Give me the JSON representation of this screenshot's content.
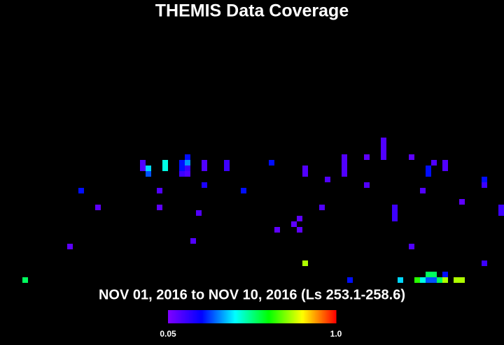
{
  "chart_data": {
    "type": "heatmap",
    "title": "THEMIS Data Coverage",
    "subtitle": "NOV 01, 2016 to NOV 10, 2016 (Ls 253.1-258.6)",
    "x": [
      4,
      12,
      14,
      17,
      25,
      25,
      26,
      26,
      28,
      28,
      29,
      29,
      32,
      32,
      33,
      33,
      33,
      32,
      33,
      34,
      35,
      36,
      36,
      36,
      40,
      40,
      43,
      48,
      49,
      52,
      53,
      53,
      54,
      54,
      54,
      57,
      58,
      61,
      61,
      61,
      61,
      62,
      65,
      65,
      68,
      68,
      68,
      68,
      70,
      70,
      70,
      71,
      73,
      73,
      74,
      75,
      75,
      76,
      76,
      76,
      77,
      76,
      77,
      77,
      78,
      79,
      79,
      79,
      79,
      81,
      82,
      82,
      86,
      86,
      86,
      89,
      89
    ],
    "y": [
      49,
      43,
      33,
      36,
      28,
      29,
      29,
      30,
      33,
      36,
      28,
      29,
      28,
      29,
      27,
      28,
      29,
      30,
      30,
      42,
      37,
      28,
      29,
      32,
      28,
      29,
      33,
      28,
      40,
      39,
      38,
      40,
      29,
      30,
      46,
      36,
      31,
      27,
      28,
      29,
      30,
      49,
      27,
      32,
      24,
      25,
      26,
      27,
      36,
      37,
      38,
      49,
      27,
      43,
      49,
      33,
      49,
      29,
      30,
      48,
      48,
      49,
      49,
      28,
      49,
      28,
      29,
      48,
      49,
      49,
      49,
      35,
      31,
      32,
      46,
      36,
      37
    ],
    "values": [
      0.55,
      0.1,
      0.25,
      0.1,
      0.12,
      0.12,
      0.4,
      0.3,
      0.12,
      0.1,
      0.45,
      0.45,
      0.25,
      0.25,
      0.25,
      0.35,
      0.15,
      0.15,
      0.12,
      0.12,
      0.12,
      0.12,
      0.12,
      0.2,
      0.15,
      0.15,
      0.25,
      0.25,
      0.1,
      0.1,
      0.1,
      0.1,
      0.12,
      0.12,
      0.75,
      0.12,
      0.12,
      0.12,
      0.12,
      0.12,
      0.12,
      0.25,
      0.1,
      0.12,
      0.12,
      0.12,
      0.12,
      0.12,
      0.15,
      0.15,
      0.15,
      0.4,
      0.1,
      0.12,
      0.65,
      0.12,
      0.45,
      0.25,
      0.25,
      0.55,
      0.55,
      0.3,
      0.3,
      0.12,
      0.55,
      0.12,
      0.12,
      0.25,
      0.75,
      0.75,
      0.75,
      0.1,
      0.25,
      0.15,
      0.15,
      0.15,
      0.15
    ],
    "clim": [
      0.05,
      1
    ],
    "cticks": [
      0.05,
      {
        "value": 1,
        "label": "1.0"
      }
    ],
    "colormap": [
      "#8000ff",
      "#0000ff",
      "#00ffff",
      "#00ff00",
      "#ffff00",
      "#ff0000"
    ]
  }
}
